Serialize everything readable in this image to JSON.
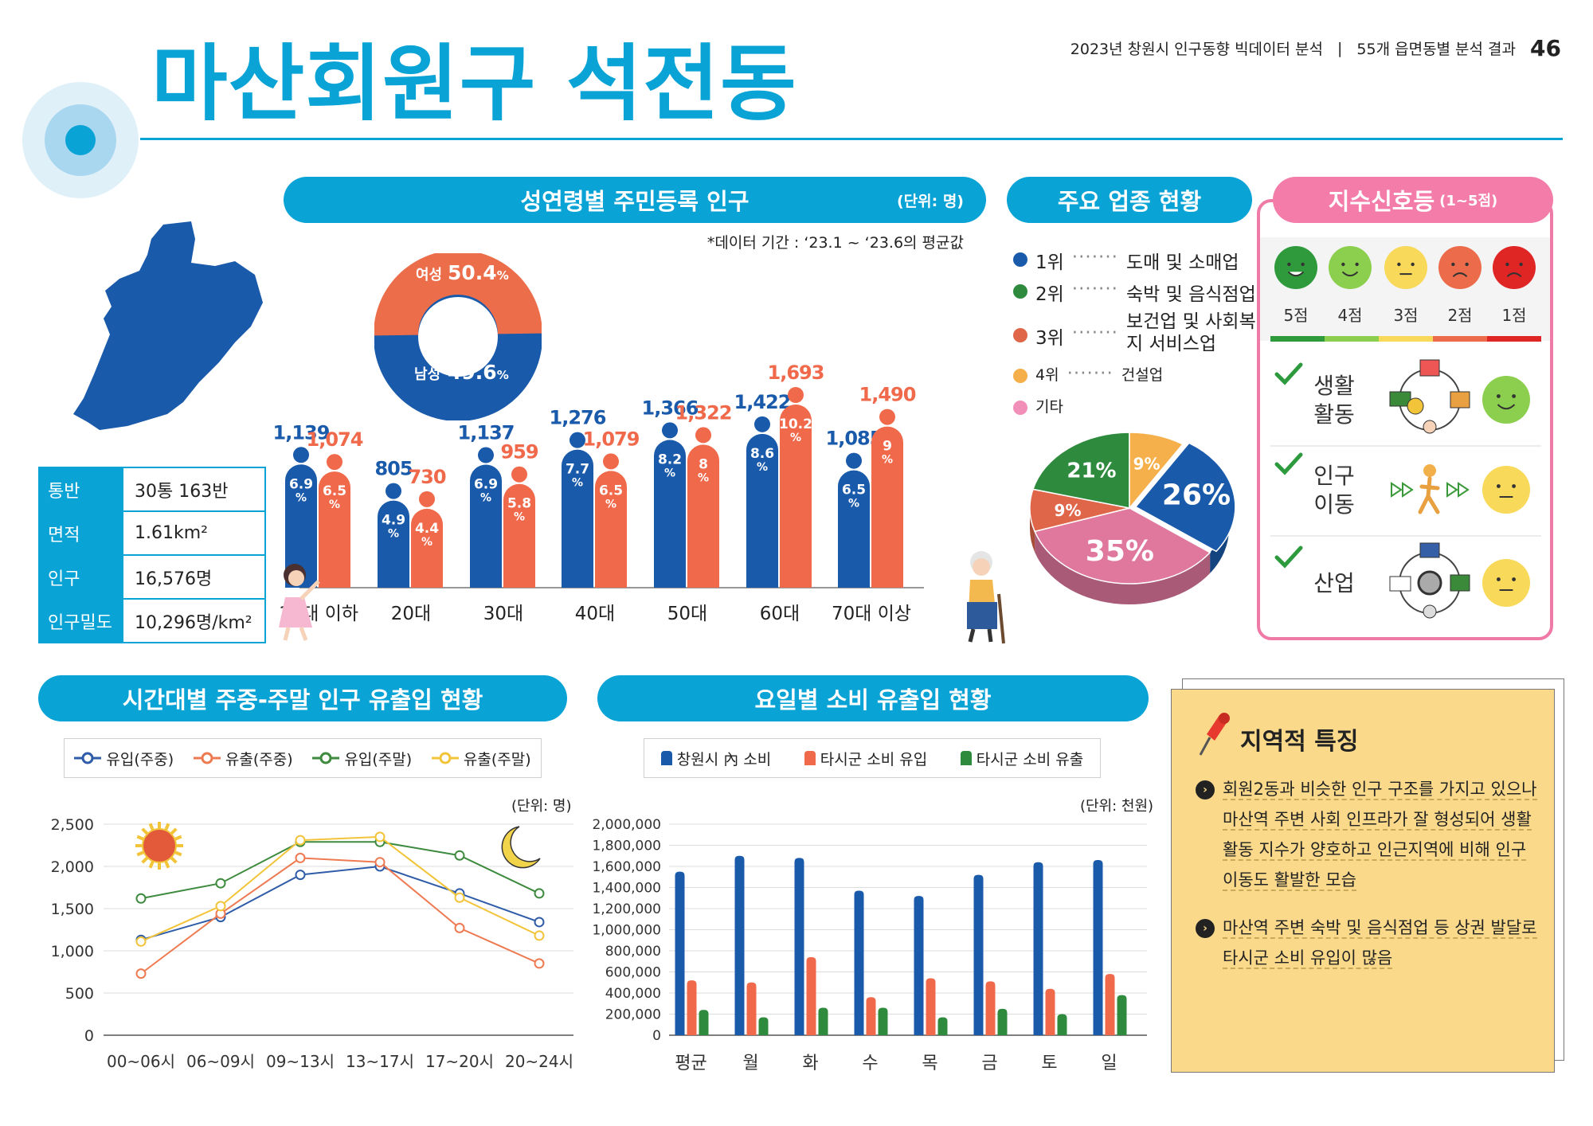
{
  "header": {
    "report": "2023년 창원시 인구동향 빅데이터 분석",
    "divider": "|",
    "section": "55개 읍면동별 분석 결과",
    "page": "46"
  },
  "title": "마산회원구 석전동",
  "info_table": [
    {
      "k": "통반",
      "v": "30통 163반"
    },
    {
      "k": "면적",
      "v": "1.61km²"
    },
    {
      "k": "인구",
      "v": "16,576명"
    },
    {
      "k": "인구밀도",
      "v": "10,296명/km²"
    }
  ],
  "population": {
    "title": "성연령별 주민등록 인구",
    "unit": "(단위: 명)",
    "note": "*데이터 기간 : ‘23.1 ~ ‘23.6의 평균값",
    "donut": {
      "female_label": "여성",
      "female_value": "50.4",
      "male_label": "남성",
      "male_value": "49.6",
      "pct": "%"
    }
  },
  "industry": {
    "title": "주요 업종 현황",
    "ranks": [
      {
        "rank": "1위",
        "name": "도매 및 소매업",
        "color": "#1a5aab"
      },
      {
        "rank": "2위",
        "name": "숙박 및 음식점업",
        "color": "#2e8b3e"
      },
      {
        "rank": "3위",
        "name": "보건업 및 사회복지 서비스업",
        "color": "#e0664a"
      },
      {
        "rank": "4위",
        "name": "건설업",
        "color": "#f5b04c"
      },
      {
        "rank": "기타",
        "name": "",
        "color": "#f28fb8"
      }
    ]
  },
  "signal": {
    "title": "지수신호등",
    "sub": "(1~5점)",
    "scores": [
      "5점",
      "4점",
      "3점",
      "2점",
      "1점"
    ],
    "face_colors": [
      "#2f9a3c",
      "#8ccf4e",
      "#f8d95a",
      "#ec6b4a",
      "#e02525"
    ],
    "rows": [
      {
        "label1": "생활",
        "label2": "활동",
        "face_color": "#8ccf4e",
        "face": "smile"
      },
      {
        "label1": "인구",
        "label2": "이동",
        "face_color": "#f8d95a",
        "face": "neutral"
      },
      {
        "label1": "산업",
        "label2": "",
        "face_color": "#f8d95a",
        "face": "neutral"
      }
    ]
  },
  "flow": {
    "title": "시간대별 주중-주말 인구 유출입 현황",
    "unit": "(단위: 명)"
  },
  "consume": {
    "title": "요일별 소비 유출입 현황",
    "unit": "(단위: 천원)"
  },
  "regional": {
    "title": "지역적 특징",
    "bullets": [
      [
        "회원2동과 비슷한 인구 구조를 가지고 있으나",
        "마산역 주변 사회 인프라가 잘 형성되어 생활",
        "활동 지수가 양호하고 인근지역에 비해 인구",
        "이동도 활발한 모습"
      ],
      [
        "마산역 주변 숙박 및 음식점업 등 상권 발달로",
        "타시군 소비 유입이 많음"
      ]
    ]
  },
  "chart_data": [
    {
      "type": "bar",
      "title": "성연령별 주민등록 인구",
      "categories": [
        "10대 이하",
        "20대",
        "30대",
        "40대",
        "50대",
        "60대",
        "70대 이상"
      ],
      "series": [
        {
          "name": "남성",
          "color": "#1a5aab",
          "values": [
            1139,
            805,
            1137,
            1276,
            1366,
            1422,
            1085
          ],
          "labels": [
            "1,139",
            "805",
            "1,137",
            "1,276",
            "1,366",
            "1,422",
            "1,085"
          ],
          "pct": [
            "6.9",
            "4.9",
            "6.9",
            "7.7",
            "8.2",
            "8.6",
            "6.5"
          ]
        },
        {
          "name": "여성",
          "color": "#f0694a",
          "values": [
            1074,
            730,
            959,
            1079,
            1322,
            1693,
            1490
          ],
          "labels": [
            "1,074",
            "730",
            "959",
            "1,079",
            "1,322",
            "1,693",
            "1,490"
          ],
          "pct": [
            "6.5",
            "4.4",
            "5.8",
            "6.5",
            "8",
            "10.2",
            "9"
          ]
        }
      ],
      "pct_unit": "%"
    },
    {
      "type": "pie",
      "title": "주요 업종 현황",
      "slices": [
        {
          "name": "1위",
          "value": 26,
          "label": "26%",
          "color": "#1a5aab"
        },
        {
          "name": "기타",
          "value": 35,
          "label": "35%",
          "color": "#e0789e"
        },
        {
          "name": "3위",
          "value": 9,
          "label": "9%",
          "color": "#e0664a"
        },
        {
          "name": "2위",
          "value": 21,
          "label": "21%",
          "color": "#2e8b3e"
        },
        {
          "name": "4위",
          "value": 9,
          "label": "9%",
          "color": "#f5b04c"
        }
      ]
    },
    {
      "type": "line",
      "title": "시간대별 주중-주말 인구 유출입 현황",
      "categories": [
        "00~06시",
        "06~09시",
        "09~13시",
        "13~17시",
        "17~20시",
        "20~24시"
      ],
      "ylim": [
        0,
        2500
      ],
      "yticks": [
        0,
        500,
        1000,
        1500,
        2000,
        2500
      ],
      "ytick_labels": [
        "0",
        "500",
        "1,000",
        "1,500",
        "2,000",
        "2,500"
      ],
      "series": [
        {
          "name": "유입(주중)",
          "color": "#2f5ca8",
          "values": [
            1130,
            1400,
            1900,
            2000,
            1680,
            1340
          ]
        },
        {
          "name": "유출(주중)",
          "color": "#ee7a52",
          "values": [
            730,
            1440,
            2100,
            2050,
            1270,
            850
          ]
        },
        {
          "name": "유입(주말)",
          "color": "#3e8a3e",
          "values": [
            1620,
            1800,
            2290,
            2290,
            2130,
            1680
          ]
        },
        {
          "name": "유출(주말)",
          "color": "#f2c43a",
          "values": [
            1110,
            1530,
            2310,
            2350,
            1630,
            1180
          ]
        }
      ]
    },
    {
      "type": "bar",
      "title": "요일별 소비 유출입 현황",
      "categories": [
        "평균",
        "월",
        "화",
        "수",
        "목",
        "금",
        "토",
        "일"
      ],
      "ylim": [
        0,
        2000000
      ],
      "yticks": [
        0,
        200000,
        400000,
        600000,
        800000,
        1000000,
        1200000,
        1400000,
        1600000,
        1800000,
        2000000
      ],
      "ytick_labels": [
        "0",
        "200,000",
        "400,000",
        "600,000",
        "800,000",
        "1,000,000",
        "1,200,000",
        "1,400,000",
        "1,600,000",
        "1,800,000",
        "2,000,000"
      ],
      "series": [
        {
          "name": "창원시 內 소비",
          "color": "#1a5aab",
          "values": [
            1550000,
            1700000,
            1680000,
            1370000,
            1320000,
            1520000,
            1640000,
            1660000
          ]
        },
        {
          "name": "타시군 소비 유입",
          "color": "#f0694a",
          "values": [
            520000,
            500000,
            740000,
            360000,
            540000,
            510000,
            440000,
            580000
          ]
        },
        {
          "name": "타시군 소비 유출",
          "color": "#2e8b3e",
          "values": [
            240000,
            170000,
            260000,
            260000,
            170000,
            250000,
            200000,
            380000
          ]
        }
      ]
    }
  ]
}
